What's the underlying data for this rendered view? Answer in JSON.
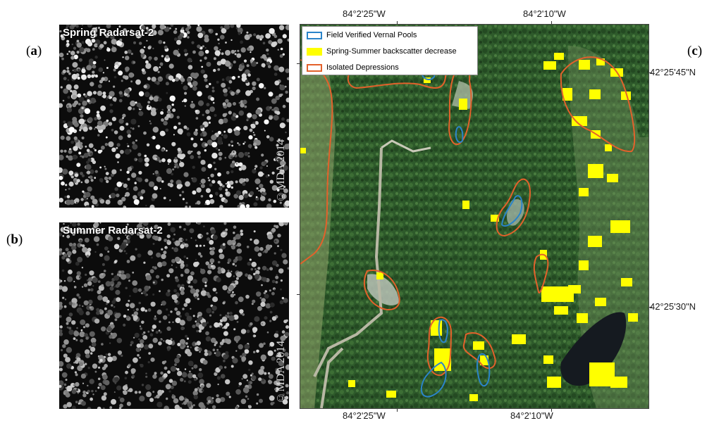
{
  "panels": {
    "a": {
      "label": "a",
      "title": "Spring Radarsat-2",
      "copyright": "©MDA 2014"
    },
    "b": {
      "label": "b",
      "title": "Summer Radarsat-2",
      "copyright": "©MDA 2014"
    },
    "c": {
      "label": "c"
    }
  },
  "map": {
    "legend": [
      {
        "label": "Field Verified Vernal Pools",
        "style": "outline",
        "color": "#2b84c9"
      },
      {
        "label": "Spring-Summer backscatter decrease",
        "style": "fill",
        "color": "#ffff00"
      },
      {
        "label": "Isolated Depressions",
        "style": "outline",
        "color": "#e3612b"
      }
    ],
    "top_labels": [
      "84°2'25\"W",
      "84°2'10\"W"
    ],
    "bottom_labels": [
      "84°2'25\"W",
      "84°2'10\"W"
    ],
    "right_labels": [
      "42°25'45\"N",
      "42°25'30\"N"
    ],
    "colors": {
      "pools": "#2b84c9",
      "decrease": "#ffff00",
      "depressions": "#e3612b",
      "forest": "#2f5a2c"
    }
  }
}
